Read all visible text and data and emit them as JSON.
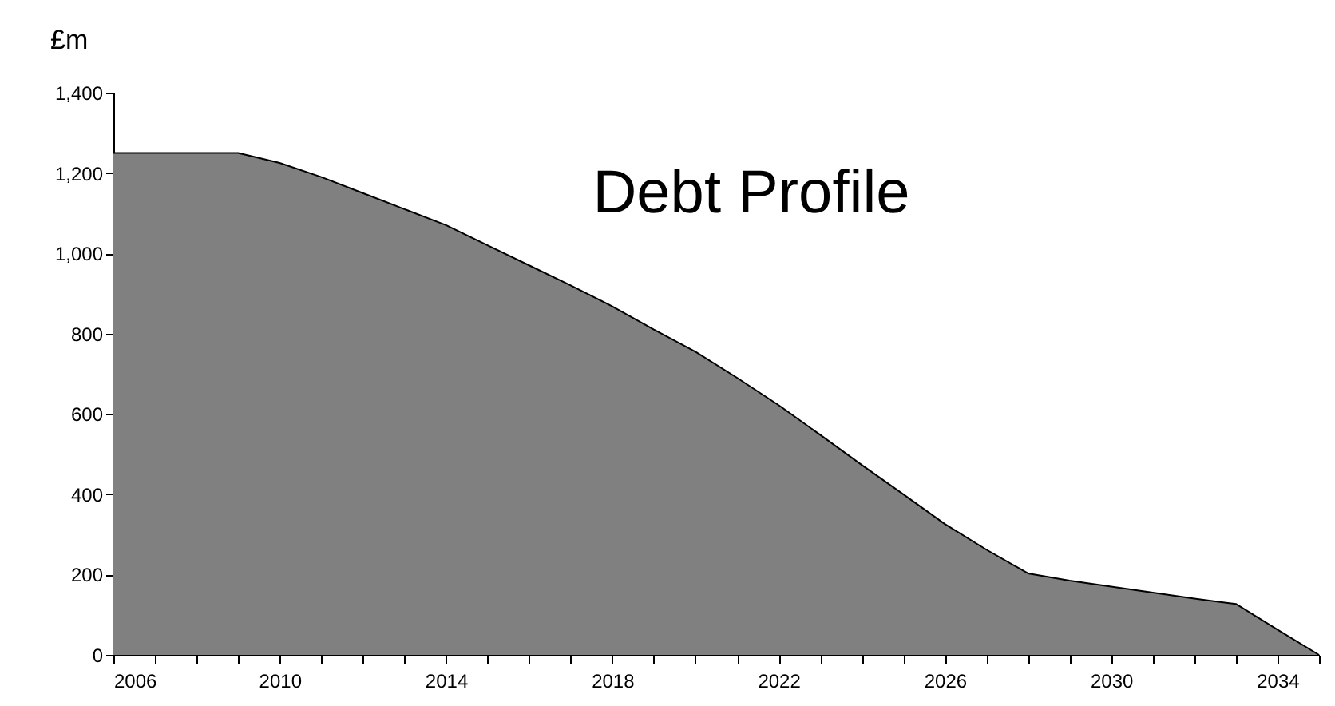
{
  "chart_data": {
    "type": "area",
    "title": "Debt Profile",
    "ylabel": "£m",
    "x": [
      2006,
      2007,
      2008,
      2009,
      2010,
      2011,
      2012,
      2013,
      2014,
      2015,
      2016,
      2017,
      2018,
      2019,
      2020,
      2021,
      2022,
      2023,
      2024,
      2025,
      2026,
      2027,
      2028,
      2029,
      2030,
      2031,
      2032,
      2033,
      2034,
      2035
    ],
    "series": [
      {
        "color": "#808080",
        "values": [
          1250,
          1250,
          1250,
          1250,
          1225,
          1190,
          1150,
          1110,
          1070,
          1020,
          970,
          920,
          868,
          810,
          755,
          690,
          622,
          548,
          473,
          400,
          326,
          262,
          203,
          185,
          170,
          155,
          140,
          127,
          63,
          0
        ]
      }
    ],
    "xlim": [
      2006,
      2035
    ],
    "xticks": [
      2006,
      {
        "value": 2007,
        "label": null
      },
      {
        "value": 2008,
        "label": null
      },
      {
        "value": 2009,
        "label": null
      },
      2010,
      {
        "value": 2011,
        "label": null
      },
      {
        "value": 2012,
        "label": null
      },
      {
        "value": 2013,
        "label": null
      },
      2014,
      {
        "value": 2015,
        "label": null
      },
      {
        "value": 2016,
        "label": null
      },
      {
        "value": 2017,
        "label": null
      },
      2018,
      {
        "value": 2019,
        "label": null
      },
      {
        "value": 2020,
        "label": null
      },
      {
        "value": 2021,
        "label": null
      },
      2022,
      {
        "value": 2023,
        "label": null
      },
      {
        "value": 2024,
        "label": null
      },
      {
        "value": 2025,
        "label": null
      },
      2026,
      {
        "value": 2027,
        "label": null
      },
      {
        "value": 2028,
        "label": null
      },
      {
        "value": 2029,
        "label": null
      },
      2030,
      {
        "value": 2031,
        "label": null
      },
      {
        "value": 2032,
        "label": null
      },
      {
        "value": 2033,
        "label": null
      },
      2034,
      {
        "value": 2035,
        "label": null
      }
    ],
    "ylim": [
      0,
      1400
    ],
    "yticks": [
      {
        "value": 0,
        "label": "0"
      },
      {
        "value": 200,
        "label": "200"
      },
      {
        "value": 400,
        "label": "400"
      },
      {
        "value": 600,
        "label": "600"
      },
      {
        "value": 800,
        "label": "800"
      },
      {
        "value": 1000,
        "label": "1,000"
      },
      {
        "value": 1200,
        "label": "1,200"
      },
      {
        "value": 1400,
        "label": "1,400"
      }
    ],
    "grid": false
  }
}
